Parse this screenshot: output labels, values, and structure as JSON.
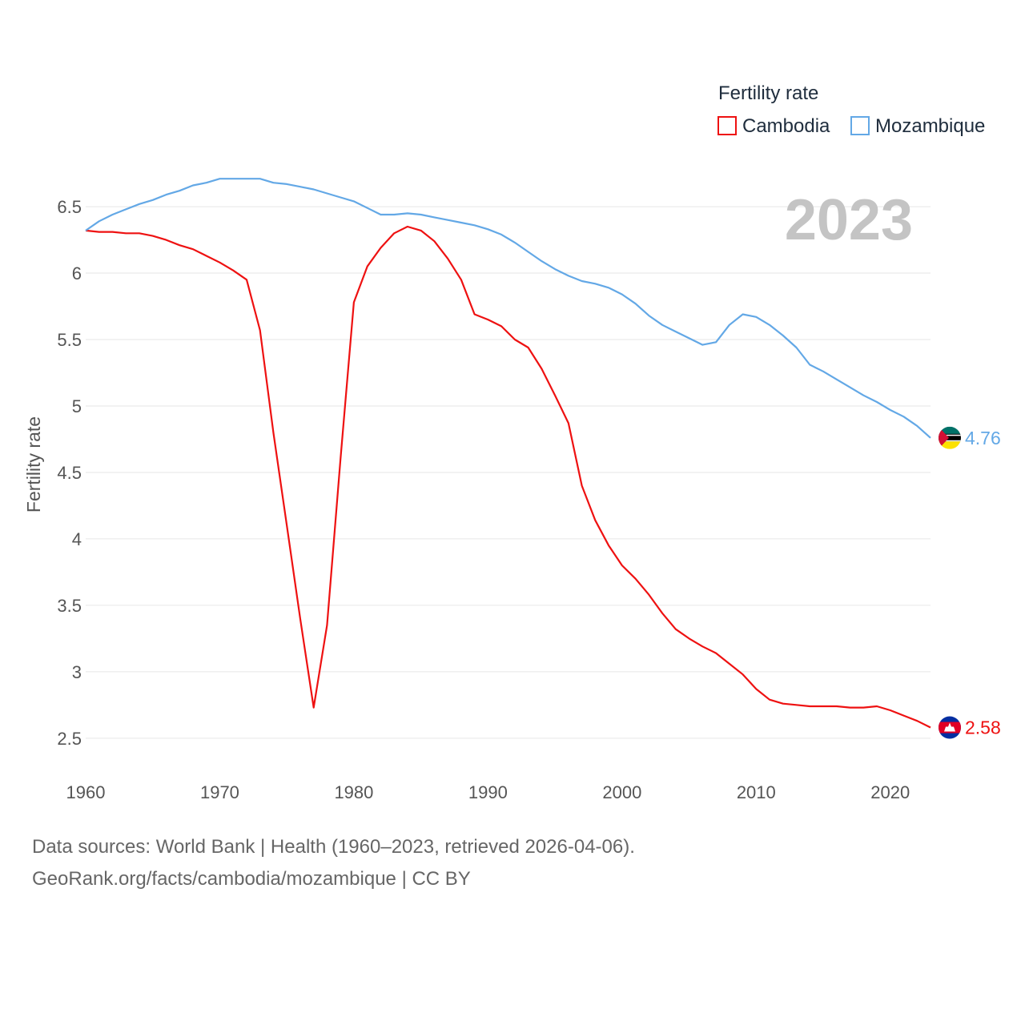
{
  "chart_data": {
    "type": "line",
    "legend_title": "Fertility rate",
    "legend_position": "top-right",
    "current_year": "2023",
    "ylabel": "Fertility rate",
    "xlabel": "",
    "xlim": [
      1960,
      2023
    ],
    "ylim": [
      2.3,
      6.85
    ],
    "y_ticks": [
      2.5,
      3,
      3.5,
      4,
      4.5,
      5,
      5.5,
      6,
      6.5
    ],
    "y_tick_labels": [
      "2.5",
      "3",
      "3.5",
      "4",
      "4.5",
      "5",
      "5.5",
      "6",
      "6.5"
    ],
    "x_ticks": [
      1960,
      1970,
      1980,
      1990,
      2000,
      2010,
      2020
    ],
    "x_tick_labels": [
      "1960",
      "1970",
      "1980",
      "1990",
      "2000",
      "2010",
      "2020"
    ],
    "grid": true,
    "x": [
      1960,
      1961,
      1962,
      1963,
      1964,
      1965,
      1966,
      1967,
      1968,
      1969,
      1970,
      1971,
      1972,
      1973,
      1974,
      1975,
      1976,
      1977,
      1978,
      1979,
      1980,
      1981,
      1982,
      1983,
      1984,
      1985,
      1986,
      1987,
      1988,
      1989,
      1990,
      1991,
      1992,
      1993,
      1994,
      1995,
      1996,
      1997,
      1998,
      1999,
      2000,
      2001,
      2002,
      2003,
      2004,
      2005,
      2006,
      2007,
      2008,
      2009,
      2010,
      2011,
      2012,
      2013,
      2014,
      2015,
      2016,
      2017,
      2018,
      2019,
      2020,
      2021,
      2022,
      2023
    ],
    "series": [
      {
        "name": "Cambodia",
        "color": "#ee1111",
        "end_label": "2.58",
        "flag": "cambodia-flag-icon",
        "values": [
          6.32,
          6.31,
          6.31,
          6.3,
          6.3,
          6.28,
          6.25,
          6.21,
          6.18,
          6.13,
          6.08,
          6.02,
          5.95,
          5.57,
          4.8,
          4.1,
          3.4,
          2.73,
          3.35,
          4.6,
          5.78,
          6.05,
          6.19,
          6.3,
          6.35,
          6.32,
          6.24,
          6.11,
          5.95,
          5.69,
          5.65,
          5.6,
          5.5,
          5.44,
          5.28,
          5.08,
          4.87,
          4.4,
          4.14,
          3.95,
          3.8,
          3.7,
          3.58,
          3.44,
          3.32,
          3.25,
          3.19,
          3.14,
          3.06,
          2.98,
          2.87,
          2.79,
          2.76,
          2.75,
          2.74,
          2.74,
          2.74,
          2.73,
          2.73,
          2.74,
          2.71,
          2.67,
          2.63,
          2.58
        ]
      },
      {
        "name": "Mozambique",
        "color": "#63a8e6",
        "end_label": "4.76",
        "flag": "mozambique-flag-icon",
        "values": [
          6.32,
          6.39,
          6.44,
          6.48,
          6.52,
          6.55,
          6.59,
          6.62,
          6.66,
          6.68,
          6.71,
          6.71,
          6.71,
          6.71,
          6.68,
          6.67,
          6.65,
          6.63,
          6.6,
          6.57,
          6.54,
          6.49,
          6.44,
          6.44,
          6.45,
          6.44,
          6.42,
          6.4,
          6.38,
          6.36,
          6.33,
          6.29,
          6.23,
          6.16,
          6.09,
          6.03,
          5.98,
          5.94,
          5.92,
          5.89,
          5.84,
          5.77,
          5.68,
          5.61,
          5.56,
          5.51,
          5.46,
          5.48,
          5.61,
          5.69,
          5.67,
          5.61,
          5.53,
          5.44,
          5.31,
          5.26,
          5.2,
          5.14,
          5.08,
          5.03,
          4.97,
          4.92,
          4.85,
          4.76
        ]
      }
    ]
  },
  "footer": {
    "line1": "Data sources: World Bank | Health (1960–2023, retrieved 2026-04-06).",
    "line2": "GeoRank.org/facts/cambodia/mozambique | CC BY"
  }
}
